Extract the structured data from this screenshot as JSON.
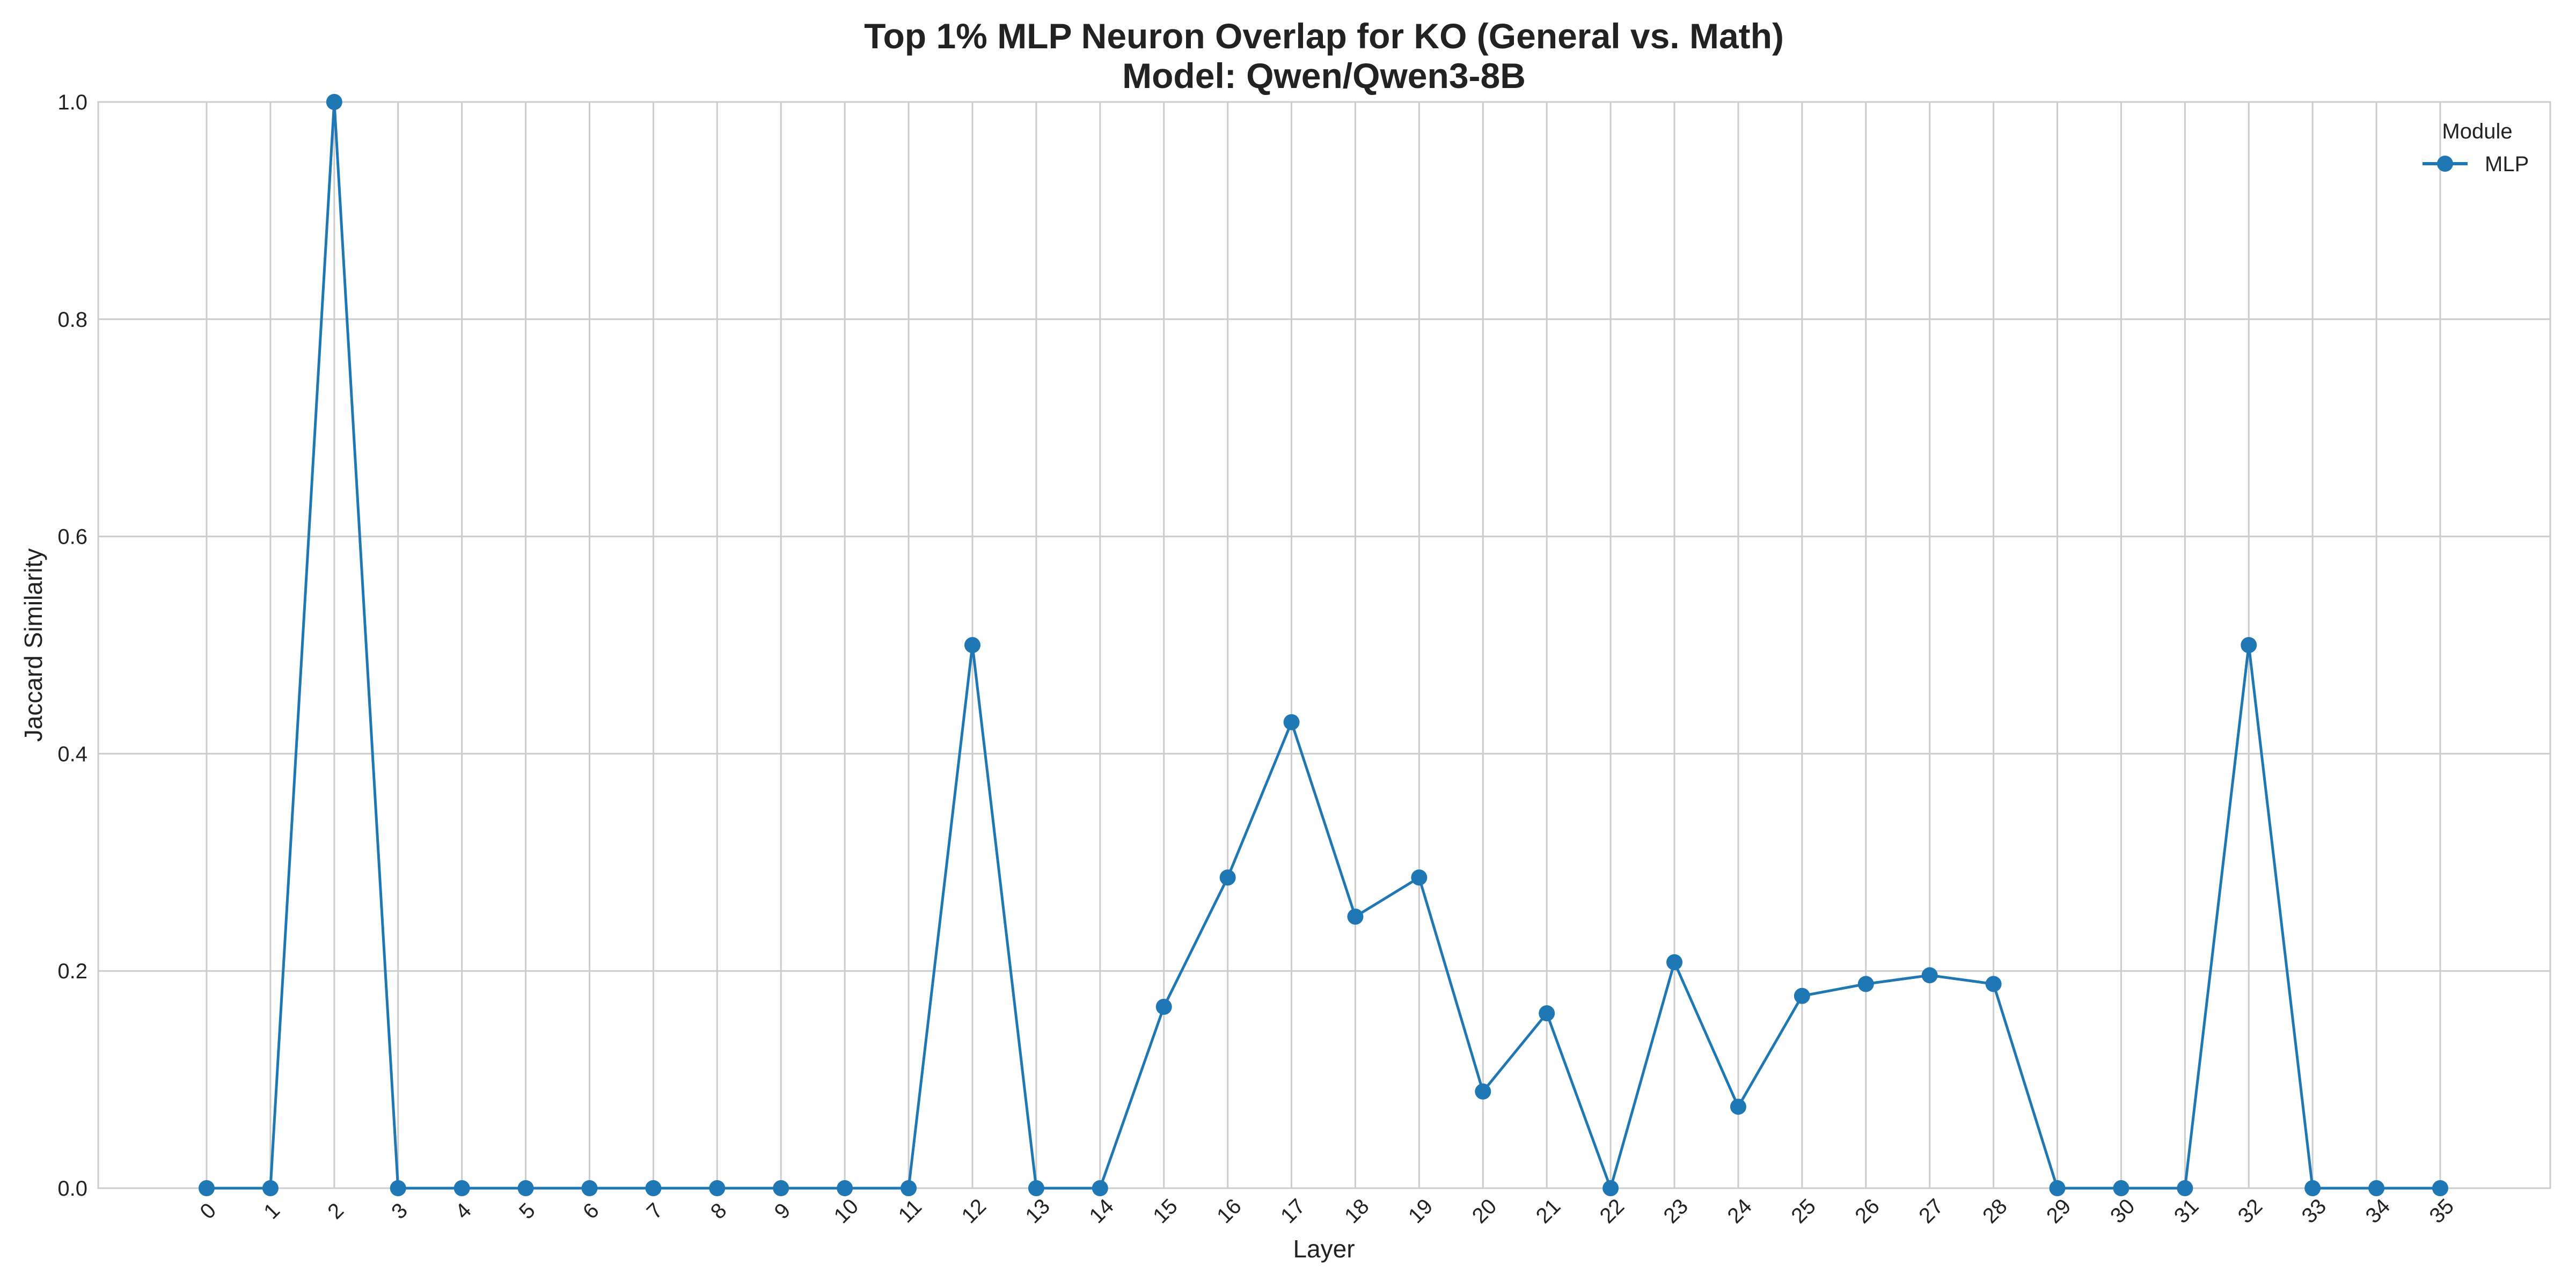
{
  "chart_data": {
    "type": "line",
    "title": "Top 1% MLP Neuron Overlap for KO (General vs. Math)",
    "subtitle": "Model: Qwen/Qwen3-8B",
    "xlabel": "Layer",
    "ylabel": "Jaccard Similarity",
    "x": [
      0,
      1,
      2,
      3,
      4,
      5,
      6,
      7,
      8,
      9,
      10,
      11,
      12,
      13,
      14,
      15,
      16,
      17,
      18,
      19,
      20,
      21,
      22,
      23,
      24,
      25,
      26,
      27,
      28,
      29,
      30,
      31,
      32,
      33,
      34,
      35
    ],
    "x_tick_labels": [
      "0",
      "1",
      "2",
      "3",
      "4",
      "5",
      "6",
      "7",
      "8",
      "9",
      "10",
      "11",
      "12",
      "13",
      "14",
      "15",
      "16",
      "17",
      "18",
      "19",
      "20",
      "21",
      "22",
      "23",
      "24",
      "25",
      "26",
      "27",
      "28",
      "29",
      "30",
      "31",
      "32",
      "33",
      "34",
      "35"
    ],
    "ylim": [
      0,
      1.0
    ],
    "y_ticks": [
      0.0,
      0.2,
      0.4,
      0.6,
      0.8,
      1.0
    ],
    "y_tick_labels": [
      "0.0",
      "0.2",
      "0.4",
      "0.6",
      "0.8",
      "1.0"
    ],
    "grid": true,
    "legend": {
      "title": "Module",
      "placement": "top-right"
    },
    "series": [
      {
        "name": "MLP",
        "color": "#1f77b4",
        "marker": "circle",
        "values": [
          0.0,
          0.0,
          1.0,
          0.0,
          0.0,
          0.0,
          0.0,
          0.0,
          0.0,
          0.0,
          0.0,
          0.0,
          0.5,
          0.0,
          0.0,
          0.167,
          0.286,
          0.429,
          0.25,
          0.286,
          0.089,
          0.161,
          0.0,
          0.208,
          0.075,
          0.177,
          0.188,
          0.196,
          0.188,
          0.0,
          0.0,
          0.0,
          0.5,
          0.0,
          0.0,
          0.0
        ]
      }
    ]
  }
}
